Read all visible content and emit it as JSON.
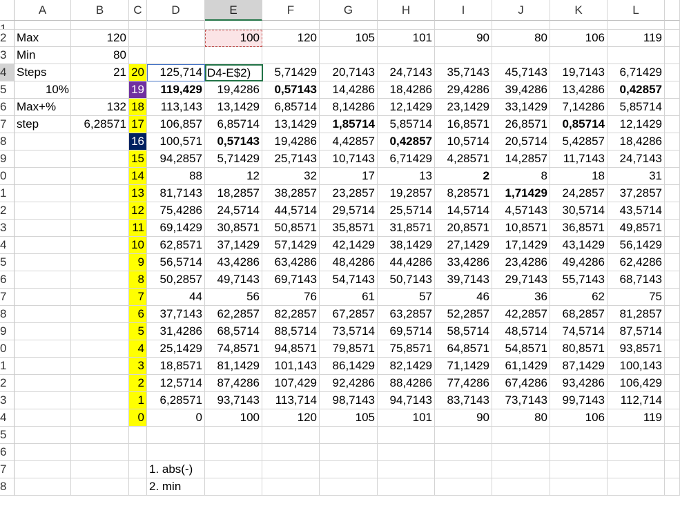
{
  "columns": [
    "A",
    "B",
    "C",
    "D",
    "E",
    "F",
    "G",
    "H",
    "I",
    "J",
    "K",
    "L"
  ],
  "selected_column": "E",
  "active_cell": "E4",
  "edit_text": "D4-E$2)",
  "cells": [
    {
      "ref": "A2",
      "v": "Max",
      "t": "txt"
    },
    {
      "ref": "B2",
      "v": "120",
      "t": "num"
    },
    {
      "ref": "E2",
      "v": "100",
      "t": "num",
      "fill": "#fbe4e6"
    },
    {
      "ref": "F2",
      "v": "120",
      "t": "num"
    },
    {
      "ref": "G2",
      "v": "105",
      "t": "num"
    },
    {
      "ref": "H2",
      "v": "101",
      "t": "num"
    },
    {
      "ref": "I2",
      "v": "90",
      "t": "num"
    },
    {
      "ref": "J2",
      "v": "80",
      "t": "num"
    },
    {
      "ref": "K2",
      "v": "106",
      "t": "num"
    },
    {
      "ref": "L2",
      "v": "119",
      "t": "num"
    },
    {
      "ref": "A3",
      "v": "Min",
      "t": "txt"
    },
    {
      "ref": "B3",
      "v": "80",
      "t": "num"
    },
    {
      "ref": "A4",
      "v": "Steps",
      "t": "txt"
    },
    {
      "ref": "B4",
      "v": "21",
      "t": "num"
    },
    {
      "ref": "C4",
      "v": "20",
      "t": "num",
      "fill": "#ffff00"
    },
    {
      "ref": "D4",
      "v": "125,714",
      "t": "num"
    },
    {
      "ref": "F4",
      "v": "5,71429",
      "t": "num"
    },
    {
      "ref": "G4",
      "v": "20,7143",
      "t": "num"
    },
    {
      "ref": "H4",
      "v": "24,7143",
      "t": "num"
    },
    {
      "ref": "I4",
      "v": "35,7143",
      "t": "num"
    },
    {
      "ref": "J4",
      "v": "45,7143",
      "t": "num"
    },
    {
      "ref": "K4",
      "v": "19,7143",
      "t": "num"
    },
    {
      "ref": "L4",
      "v": "6,71429",
      "t": "num"
    },
    {
      "ref": "A5",
      "v": "10%",
      "t": "num"
    },
    {
      "ref": "C5",
      "v": "19",
      "t": "num",
      "fill": "#7030a0",
      "color": "#ffffff"
    },
    {
      "ref": "D5",
      "v": "119,429",
      "t": "num",
      "b": 1
    },
    {
      "ref": "E5",
      "v": "19,4286",
      "t": "num"
    },
    {
      "ref": "F5",
      "v": "0,57143",
      "t": "num",
      "b": 1
    },
    {
      "ref": "G5",
      "v": "14,4286",
      "t": "num"
    },
    {
      "ref": "H5",
      "v": "18,4286",
      "t": "num"
    },
    {
      "ref": "I5",
      "v": "29,4286",
      "t": "num"
    },
    {
      "ref": "J5",
      "v": "39,4286",
      "t": "num"
    },
    {
      "ref": "K5",
      "v": "13,4286",
      "t": "num"
    },
    {
      "ref": "L5",
      "v": "0,42857",
      "t": "num",
      "b": 1
    },
    {
      "ref": "A6",
      "v": "Max+%",
      "t": "txt"
    },
    {
      "ref": "B6",
      "v": "132",
      "t": "num"
    },
    {
      "ref": "C6",
      "v": "18",
      "t": "num",
      "fill": "#ffff00"
    },
    {
      "ref": "D6",
      "v": "113,143",
      "t": "num"
    },
    {
      "ref": "E6",
      "v": "13,1429",
      "t": "num"
    },
    {
      "ref": "F6",
      "v": "6,85714",
      "t": "num"
    },
    {
      "ref": "G6",
      "v": "8,14286",
      "t": "num"
    },
    {
      "ref": "H6",
      "v": "12,1429",
      "t": "num"
    },
    {
      "ref": "I6",
      "v": "23,1429",
      "t": "num"
    },
    {
      "ref": "J6",
      "v": "33,1429",
      "t": "num"
    },
    {
      "ref": "K6",
      "v": "7,14286",
      "t": "num"
    },
    {
      "ref": "L6",
      "v": "5,85714",
      "t": "num"
    },
    {
      "ref": "A7",
      "v": "step",
      "t": "txt"
    },
    {
      "ref": "B7",
      "v": "6,28571",
      "t": "num"
    },
    {
      "ref": "C7",
      "v": "17",
      "t": "num",
      "fill": "#ffff00"
    },
    {
      "ref": "D7",
      "v": "106,857",
      "t": "num"
    },
    {
      "ref": "E7",
      "v": "6,85714",
      "t": "num"
    },
    {
      "ref": "F7",
      "v": "13,1429",
      "t": "num"
    },
    {
      "ref": "G7",
      "v": "1,85714",
      "t": "num",
      "b": 1
    },
    {
      "ref": "H7",
      "v": "5,85714",
      "t": "num"
    },
    {
      "ref": "I7",
      "v": "16,8571",
      "t": "num"
    },
    {
      "ref": "J7",
      "v": "26,8571",
      "t": "num"
    },
    {
      "ref": "K7",
      "v": "0,85714",
      "t": "num",
      "b": 1
    },
    {
      "ref": "L7",
      "v": "12,1429",
      "t": "num"
    },
    {
      "ref": "C8",
      "v": "16",
      "t": "num",
      "fill": "#002060",
      "color": "#ffffff"
    },
    {
      "ref": "D8",
      "v": "100,571",
      "t": "num"
    },
    {
      "ref": "E8",
      "v": "0,57143",
      "t": "num",
      "b": 1
    },
    {
      "ref": "F8",
      "v": "19,4286",
      "t": "num"
    },
    {
      "ref": "G8",
      "v": "4,42857",
      "t": "num"
    },
    {
      "ref": "H8",
      "v": "0,42857",
      "t": "num",
      "b": 1
    },
    {
      "ref": "I8",
      "v": "10,5714",
      "t": "num"
    },
    {
      "ref": "J8",
      "v": "20,5714",
      "t": "num"
    },
    {
      "ref": "K8",
      "v": "5,42857",
      "t": "num"
    },
    {
      "ref": "L8",
      "v": "18,4286",
      "t": "num"
    },
    {
      "ref": "C9",
      "v": "15",
      "t": "num",
      "fill": "#ffff00"
    },
    {
      "ref": "D9",
      "v": "94,2857",
      "t": "num"
    },
    {
      "ref": "E9",
      "v": "5,71429",
      "t": "num"
    },
    {
      "ref": "F9",
      "v": "25,7143",
      "t": "num"
    },
    {
      "ref": "G9",
      "v": "10,7143",
      "t": "num"
    },
    {
      "ref": "H9",
      "v": "6,71429",
      "t": "num"
    },
    {
      "ref": "I9",
      "v": "4,28571",
      "t": "num"
    },
    {
      "ref": "J9",
      "v": "14,2857",
      "t": "num"
    },
    {
      "ref": "K9",
      "v": "11,7143",
      "t": "num"
    },
    {
      "ref": "L9",
      "v": "24,7143",
      "t": "num"
    },
    {
      "ref": "C10",
      "v": "14",
      "t": "num",
      "fill": "#ffff00"
    },
    {
      "ref": "D10",
      "v": "88",
      "t": "num"
    },
    {
      "ref": "E10",
      "v": "12",
      "t": "num"
    },
    {
      "ref": "F10",
      "v": "32",
      "t": "num"
    },
    {
      "ref": "G10",
      "v": "17",
      "t": "num"
    },
    {
      "ref": "H10",
      "v": "13",
      "t": "num"
    },
    {
      "ref": "I10",
      "v": "2",
      "t": "num",
      "b": 1
    },
    {
      "ref": "J10",
      "v": "8",
      "t": "num"
    },
    {
      "ref": "K10",
      "v": "18",
      "t": "num"
    },
    {
      "ref": "L10",
      "v": "31",
      "t": "num"
    },
    {
      "ref": "C11",
      "v": "13",
      "t": "num",
      "fill": "#ffff00"
    },
    {
      "ref": "D11",
      "v": "81,7143",
      "t": "num"
    },
    {
      "ref": "E11",
      "v": "18,2857",
      "t": "num"
    },
    {
      "ref": "F11",
      "v": "38,2857",
      "t": "num"
    },
    {
      "ref": "G11",
      "v": "23,2857",
      "t": "num"
    },
    {
      "ref": "H11",
      "v": "19,2857",
      "t": "num"
    },
    {
      "ref": "I11",
      "v": "8,28571",
      "t": "num"
    },
    {
      "ref": "J11",
      "v": "1,71429",
      "t": "num",
      "b": 1
    },
    {
      "ref": "K11",
      "v": "24,2857",
      "t": "num"
    },
    {
      "ref": "L11",
      "v": "37,2857",
      "t": "num"
    },
    {
      "ref": "C12",
      "v": "12",
      "t": "num",
      "fill": "#ffff00"
    },
    {
      "ref": "D12",
      "v": "75,4286",
      "t": "num"
    },
    {
      "ref": "E12",
      "v": "24,5714",
      "t": "num"
    },
    {
      "ref": "F12",
      "v": "44,5714",
      "t": "num"
    },
    {
      "ref": "G12",
      "v": "29,5714",
      "t": "num"
    },
    {
      "ref": "H12",
      "v": "25,5714",
      "t": "num"
    },
    {
      "ref": "I12",
      "v": "14,5714",
      "t": "num"
    },
    {
      "ref": "J12",
      "v": "4,57143",
      "t": "num"
    },
    {
      "ref": "K12",
      "v": "30,5714",
      "t": "num"
    },
    {
      "ref": "L12",
      "v": "43,5714",
      "t": "num"
    },
    {
      "ref": "C13",
      "v": "11",
      "t": "num",
      "fill": "#ffff00"
    },
    {
      "ref": "D13",
      "v": "69,1429",
      "t": "num"
    },
    {
      "ref": "E13",
      "v": "30,8571",
      "t": "num"
    },
    {
      "ref": "F13",
      "v": "50,8571",
      "t": "num"
    },
    {
      "ref": "G13",
      "v": "35,8571",
      "t": "num"
    },
    {
      "ref": "H13",
      "v": "31,8571",
      "t": "num"
    },
    {
      "ref": "I13",
      "v": "20,8571",
      "t": "num"
    },
    {
      "ref": "J13",
      "v": "10,8571",
      "t": "num"
    },
    {
      "ref": "K13",
      "v": "36,8571",
      "t": "num"
    },
    {
      "ref": "L13",
      "v": "49,8571",
      "t": "num"
    },
    {
      "ref": "C14",
      "v": "10",
      "t": "num",
      "fill": "#ffff00"
    },
    {
      "ref": "D14",
      "v": "62,8571",
      "t": "num"
    },
    {
      "ref": "E14",
      "v": "37,1429",
      "t": "num"
    },
    {
      "ref": "F14",
      "v": "57,1429",
      "t": "num"
    },
    {
      "ref": "G14",
      "v": "42,1429",
      "t": "num"
    },
    {
      "ref": "H14",
      "v": "38,1429",
      "t": "num"
    },
    {
      "ref": "I14",
      "v": "27,1429",
      "t": "num"
    },
    {
      "ref": "J14",
      "v": "17,1429",
      "t": "num"
    },
    {
      "ref": "K14",
      "v": "43,1429",
      "t": "num"
    },
    {
      "ref": "L14",
      "v": "56,1429",
      "t": "num"
    },
    {
      "ref": "C15",
      "v": "9",
      "t": "num",
      "fill": "#ffff00"
    },
    {
      "ref": "D15",
      "v": "56,5714",
      "t": "num"
    },
    {
      "ref": "E15",
      "v": "43,4286",
      "t": "num"
    },
    {
      "ref": "F15",
      "v": "63,4286",
      "t": "num"
    },
    {
      "ref": "G15",
      "v": "48,4286",
      "t": "num"
    },
    {
      "ref": "H15",
      "v": "44,4286",
      "t": "num"
    },
    {
      "ref": "I15",
      "v": "33,4286",
      "t": "num"
    },
    {
      "ref": "J15",
      "v": "23,4286",
      "t": "num"
    },
    {
      "ref": "K15",
      "v": "49,4286",
      "t": "num"
    },
    {
      "ref": "L15",
      "v": "62,4286",
      "t": "num"
    },
    {
      "ref": "C16",
      "v": "8",
      "t": "num",
      "fill": "#ffff00"
    },
    {
      "ref": "D16",
      "v": "50,2857",
      "t": "num"
    },
    {
      "ref": "E16",
      "v": "49,7143",
      "t": "num"
    },
    {
      "ref": "F16",
      "v": "69,7143",
      "t": "num"
    },
    {
      "ref": "G16",
      "v": "54,7143",
      "t": "num"
    },
    {
      "ref": "H16",
      "v": "50,7143",
      "t": "num"
    },
    {
      "ref": "I16",
      "v": "39,7143",
      "t": "num"
    },
    {
      "ref": "J16",
      "v": "29,7143",
      "t": "num"
    },
    {
      "ref": "K16",
      "v": "55,7143",
      "t": "num"
    },
    {
      "ref": "L16",
      "v": "68,7143",
      "t": "num"
    },
    {
      "ref": "C17",
      "v": "7",
      "t": "num",
      "fill": "#ffff00"
    },
    {
      "ref": "D17",
      "v": "44",
      "t": "num"
    },
    {
      "ref": "E17",
      "v": "56",
      "t": "num"
    },
    {
      "ref": "F17",
      "v": "76",
      "t": "num"
    },
    {
      "ref": "G17",
      "v": "61",
      "t": "num"
    },
    {
      "ref": "H17",
      "v": "57",
      "t": "num"
    },
    {
      "ref": "I17",
      "v": "46",
      "t": "num"
    },
    {
      "ref": "J17",
      "v": "36",
      "t": "num"
    },
    {
      "ref": "K17",
      "v": "62",
      "t": "num"
    },
    {
      "ref": "L17",
      "v": "75",
      "t": "num"
    },
    {
      "ref": "C18",
      "v": "6",
      "t": "num",
      "fill": "#ffff00"
    },
    {
      "ref": "D18",
      "v": "37,7143",
      "t": "num"
    },
    {
      "ref": "E18",
      "v": "62,2857",
      "t": "num"
    },
    {
      "ref": "F18",
      "v": "82,2857",
      "t": "num"
    },
    {
      "ref": "G18",
      "v": "67,2857",
      "t": "num"
    },
    {
      "ref": "H18",
      "v": "63,2857",
      "t": "num"
    },
    {
      "ref": "I18",
      "v": "52,2857",
      "t": "num"
    },
    {
      "ref": "J18",
      "v": "42,2857",
      "t": "num"
    },
    {
      "ref": "K18",
      "v": "68,2857",
      "t": "num"
    },
    {
      "ref": "L18",
      "v": "81,2857",
      "t": "num"
    },
    {
      "ref": "C19",
      "v": "5",
      "t": "num",
      "fill": "#ffff00"
    },
    {
      "ref": "D19",
      "v": "31,4286",
      "t": "num"
    },
    {
      "ref": "E19",
      "v": "68,5714",
      "t": "num"
    },
    {
      "ref": "F19",
      "v": "88,5714",
      "t": "num"
    },
    {
      "ref": "G19",
      "v": "73,5714",
      "t": "num"
    },
    {
      "ref": "H19",
      "v": "69,5714",
      "t": "num"
    },
    {
      "ref": "I19",
      "v": "58,5714",
      "t": "num"
    },
    {
      "ref": "J19",
      "v": "48,5714",
      "t": "num"
    },
    {
      "ref": "K19",
      "v": "74,5714",
      "t": "num"
    },
    {
      "ref": "L19",
      "v": "87,5714",
      "t": "num"
    },
    {
      "ref": "C20",
      "v": "4",
      "t": "num",
      "fill": "#ffff00"
    },
    {
      "ref": "D20",
      "v": "25,1429",
      "t": "num"
    },
    {
      "ref": "E20",
      "v": "74,8571",
      "t": "num"
    },
    {
      "ref": "F20",
      "v": "94,8571",
      "t": "num"
    },
    {
      "ref": "G20",
      "v": "79,8571",
      "t": "num"
    },
    {
      "ref": "H20",
      "v": "75,8571",
      "t": "num"
    },
    {
      "ref": "I20",
      "v": "64,8571",
      "t": "num"
    },
    {
      "ref": "J20",
      "v": "54,8571",
      "t": "num"
    },
    {
      "ref": "K20",
      "v": "80,8571",
      "t": "num"
    },
    {
      "ref": "L20",
      "v": "93,8571",
      "t": "num"
    },
    {
      "ref": "C21",
      "v": "3",
      "t": "num",
      "fill": "#ffff00"
    },
    {
      "ref": "D21",
      "v": "18,8571",
      "t": "num"
    },
    {
      "ref": "E21",
      "v": "81,1429",
      "t": "num"
    },
    {
      "ref": "F21",
      "v": "101,143",
      "t": "num"
    },
    {
      "ref": "G21",
      "v": "86,1429",
      "t": "num"
    },
    {
      "ref": "H21",
      "v": "82,1429",
      "t": "num"
    },
    {
      "ref": "I21",
      "v": "71,1429",
      "t": "num"
    },
    {
      "ref": "J21",
      "v": "61,1429",
      "t": "num"
    },
    {
      "ref": "K21",
      "v": "87,1429",
      "t": "num"
    },
    {
      "ref": "L21",
      "v": "100,143",
      "t": "num"
    },
    {
      "ref": "C22",
      "v": "2",
      "t": "num",
      "fill": "#ffff00"
    },
    {
      "ref": "D22",
      "v": "12,5714",
      "t": "num"
    },
    {
      "ref": "E22",
      "v": "87,4286",
      "t": "num"
    },
    {
      "ref": "F22",
      "v": "107,429",
      "t": "num"
    },
    {
      "ref": "G22",
      "v": "92,4286",
      "t": "num"
    },
    {
      "ref": "H22",
      "v": "88,4286",
      "t": "num"
    },
    {
      "ref": "I22",
      "v": "77,4286",
      "t": "num"
    },
    {
      "ref": "J22",
      "v": "67,4286",
      "t": "num"
    },
    {
      "ref": "K22",
      "v": "93,4286",
      "t": "num"
    },
    {
      "ref": "L22",
      "v": "106,429",
      "t": "num"
    },
    {
      "ref": "C23",
      "v": "1",
      "t": "num",
      "fill": "#ffff00"
    },
    {
      "ref": "D23",
      "v": "6,28571",
      "t": "num"
    },
    {
      "ref": "E23",
      "v": "93,7143",
      "t": "num"
    },
    {
      "ref": "F23",
      "v": "113,714",
      "t": "num"
    },
    {
      "ref": "G23",
      "v": "98,7143",
      "t": "num"
    },
    {
      "ref": "H23",
      "v": "94,7143",
      "t": "num"
    },
    {
      "ref": "I23",
      "v": "83,7143",
      "t": "num"
    },
    {
      "ref": "J23",
      "v": "73,7143",
      "t": "num"
    },
    {
      "ref": "K23",
      "v": "99,7143",
      "t": "num"
    },
    {
      "ref": "L23",
      "v": "112,714",
      "t": "num"
    },
    {
      "ref": "C24",
      "v": "0",
      "t": "num",
      "fill": "#ffff00"
    },
    {
      "ref": "D24",
      "v": "0",
      "t": "num"
    },
    {
      "ref": "E24",
      "v": "100",
      "t": "num"
    },
    {
      "ref": "F24",
      "v": "120",
      "t": "num"
    },
    {
      "ref": "G24",
      "v": "105",
      "t": "num"
    },
    {
      "ref": "H24",
      "v": "101",
      "t": "num"
    },
    {
      "ref": "I24",
      "v": "90",
      "t": "num"
    },
    {
      "ref": "J24",
      "v": "80",
      "t": "num"
    },
    {
      "ref": "K24",
      "v": "106",
      "t": "num"
    },
    {
      "ref": "L24",
      "v": "119",
      "t": "num"
    },
    {
      "ref": "D27",
      "v": "1. abs(-)",
      "t": "txt"
    },
    {
      "ref": "D28",
      "v": "2. min",
      "t": "txt"
    }
  ]
}
